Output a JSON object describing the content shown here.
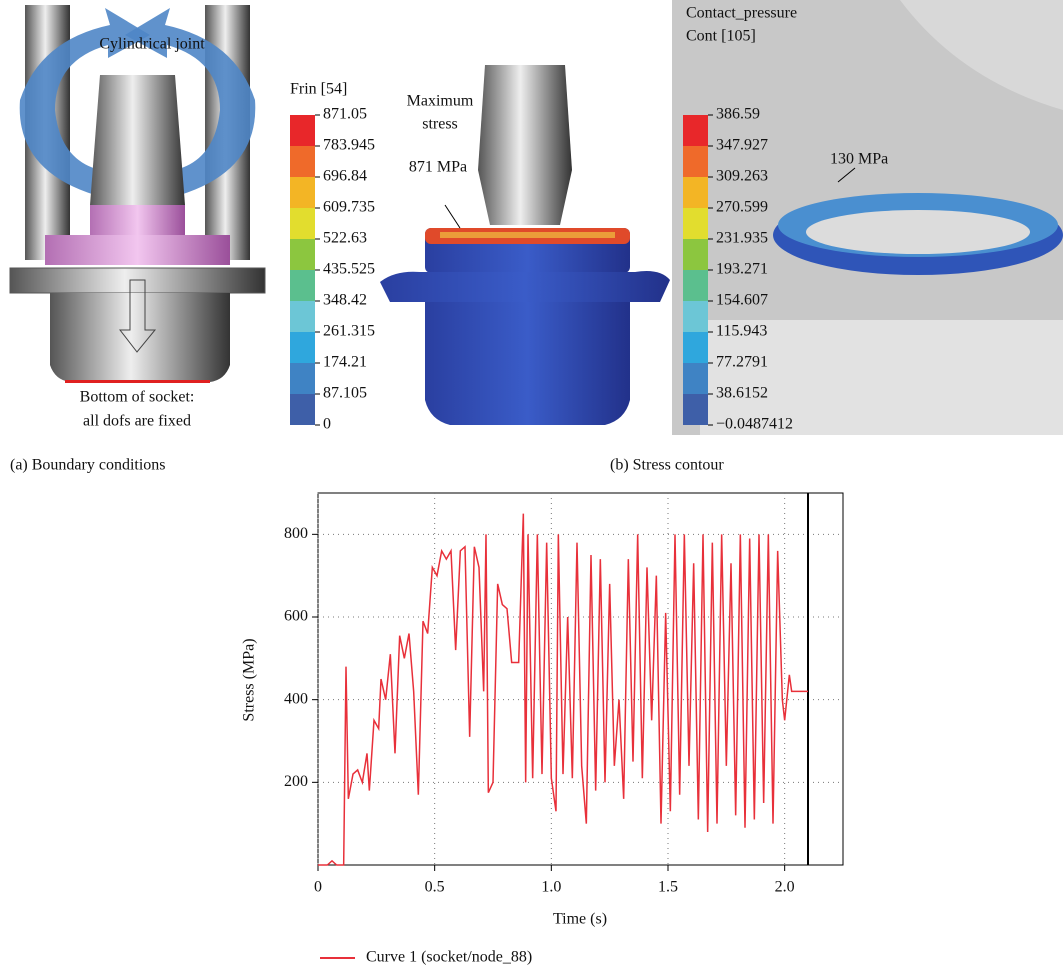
{
  "panel_a": {
    "joint_label": "Cylindrical joint",
    "fixed_label_1": "Bottom of socket:",
    "fixed_label_2": "all dofs are fixed",
    "caption": "(a) Boundary conditions"
  },
  "panel_b": {
    "legend_1_title": "Frin [54]",
    "legend_1_ticks": [
      "871.05",
      "783.945",
      "696.84",
      "609.735",
      "522.63",
      "435.525",
      "348.42",
      "261.315",
      "174.21",
      "87.105",
      "0"
    ],
    "max_label_1": "Maximum",
    "max_label_2": "stress",
    "max_value": "871 MPa",
    "legend_2_title_1": "Contact_pressure",
    "legend_2_title_2": "Cont [105]",
    "legend_2_ticks": [
      "386.59",
      "347.927",
      "309.263",
      "270.599",
      "231.935",
      "193.271",
      "154.607",
      "115.943",
      "77.2791",
      "38.6152",
      "−0.0487412"
    ],
    "contact_value": "130 MPa",
    "caption": "(b) Stress contour"
  },
  "chart_data": {
    "type": "line",
    "x_label": "Time (s)",
    "y_label": "Stress (MPa)",
    "xlim": [
      0,
      2.25
    ],
    "ylim": [
      0,
      900
    ],
    "xticks": [
      0,
      0.5,
      {
        "value": 1,
        "label": "1.0"
      },
      1.5,
      {
        "value": 2,
        "label": "2.0"
      }
    ],
    "yticks": [
      200,
      400,
      600,
      800
    ],
    "grid": true,
    "vertical_line_x": 2.1,
    "x": [
      0,
      0.04,
      0.06,
      0.08,
      0.11,
      0.12,
      0.13,
      0.15,
      0.17,
      0.19,
      0.21,
      0.22,
      0.24,
      0.26,
      0.27,
      0.29,
      0.31,
      0.33,
      0.35,
      0.37,
      0.39,
      0.41,
      0.43,
      0.45,
      0.47,
      0.49,
      0.51,
      0.53,
      0.55,
      0.57,
      0.59,
      0.61,
      0.63,
      0.65,
      0.67,
      0.69,
      0.71,
      0.72,
      0.73,
      0.75,
      0.77,
      0.79,
      0.81,
      0.83,
      0.86,
      0.88,
      0.89,
      0.9,
      0.92,
      0.94,
      0.96,
      0.98,
      1,
      1.02,
      1.03,
      1.05,
      1.07,
      1.09,
      1.11,
      1.13,
      1.15,
      1.17,
      1.19,
      1.21,
      1.23,
      1.25,
      1.27,
      1.29,
      1.31,
      1.33,
      1.35,
      1.37,
      1.39,
      1.41,
      1.43,
      1.45,
      1.47,
      1.49,
      1.51,
      1.53,
      1.55,
      1.57,
      1.59,
      1.61,
      1.63,
      1.65,
      1.67,
      1.69,
      1.71,
      1.73,
      1.75,
      1.77,
      1.79,
      1.81,
      1.83,
      1.85,
      1.87,
      1.89,
      1.91,
      1.93,
      1.95,
      1.97,
      1.99,
      2,
      2.02,
      2.03,
      2.1
    ],
    "series": [
      {
        "name": "Curve 1 (socket/node_88)",
        "color": "#e8303a",
        "values": [
          0,
          0,
          10,
          0,
          0,
          480,
          160,
          220,
          230,
          200,
          270,
          180,
          350,
          330,
          450,
          400,
          510,
          270,
          555,
          500,
          560,
          420,
          170,
          590,
          560,
          720,
          700,
          760,
          740,
          760,
          520,
          760,
          770,
          310,
          770,
          720,
          420,
          800,
          175,
          200,
          680,
          630,
          620,
          490,
          490,
          850,
          200,
          800,
          210,
          800,
          220,
          780,
          210,
          130,
          800,
          220,
          600,
          210,
          780,
          240,
          100,
          750,
          180,
          740,
          200,
          680,
          240,
          400,
          160,
          740,
          250,
          800,
          210,
          720,
          350,
          700,
          100,
          610,
          130,
          800,
          170,
          800,
          240,
          730,
          110,
          800,
          80,
          780,
          100,
          800,
          240,
          730,
          120,
          800,
          90,
          790,
          110,
          800,
          150,
          800,
          100,
          760,
          400,
          350,
          460,
          420,
          420
        ]
      }
    ]
  }
}
